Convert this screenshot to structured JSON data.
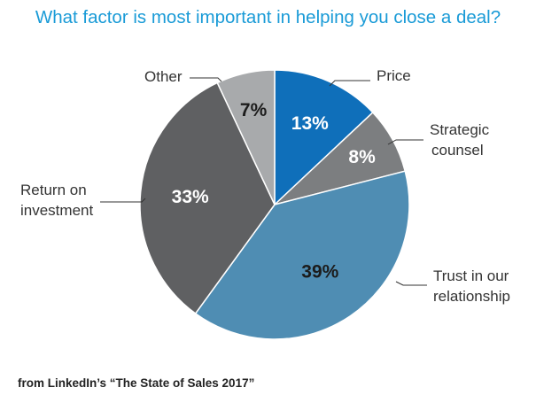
{
  "chart_data": {
    "type": "pie",
    "title": "What factor is most important in helping you close a deal?",
    "slices": [
      {
        "label": "Price",
        "value": 13,
        "value_label": "13%",
        "color": "#0f6fba",
        "text_color": "#ffffff"
      },
      {
        "label": "Strategic counsel",
        "value": 8,
        "value_label": "8%",
        "color": "#7c7e80",
        "text_color": "#ffffff"
      },
      {
        "label": "Trust in our relationship",
        "value": 39,
        "value_label": "39%",
        "color": "#4f8db3",
        "text_color": "#1c1c1c"
      },
      {
        "label": "Return on investment",
        "value": 33,
        "value_label": "33%",
        "color": "#5f6062",
        "text_color": "#ffffff"
      },
      {
        "label": "Other",
        "value": 7,
        "value_label": "7%",
        "color": "#a8aaac",
        "text_color": "#1c1c1c"
      }
    ],
    "start": "top",
    "direction": "clockwise"
  },
  "source": "from LinkedIn’s “The State of Sales 2017”"
}
